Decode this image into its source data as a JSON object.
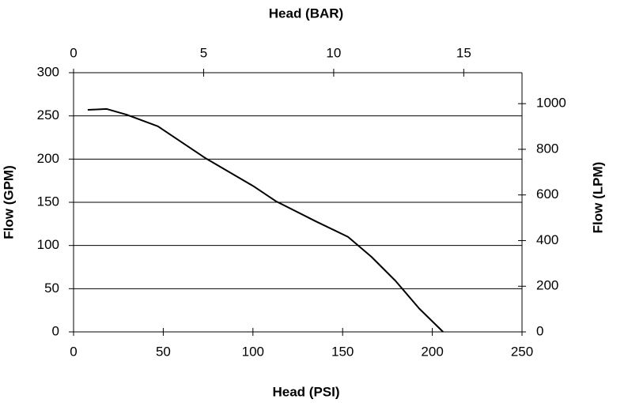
{
  "chart_data": {
    "type": "line",
    "x_label": "Head (PSI)",
    "x2_label": "Head (BAR)",
    "y_label": "Flow (GPM)",
    "y2_label": "Flow (LPM)",
    "x": [
      7.9,
      18.5,
      29.5,
      47,
      73.6,
      100,
      113,
      135,
      153,
      166,
      179.5,
      192.7,
      206
    ],
    "series": [
      {
        "color": "#000000",
        "values": [
          257,
          258,
          251.5,
          238,
          201,
          169,
          151,
          128,
          110,
          87,
          59,
          27,
          0
        ]
      }
    ],
    "xlim": [
      0,
      250
    ],
    "xticks": [
      0,
      50,
      100,
      150,
      200,
      250
    ],
    "ylim": [
      0,
      300
    ],
    "yticks": [
      0,
      50,
      100,
      150,
      200,
      250,
      300
    ],
    "x2lim": [
      0,
      17.24
    ],
    "x2ticks": [
      0,
      5,
      10,
      15
    ],
    "y2lim": [
      0,
      1135.6
    ],
    "y2ticks": [
      0,
      200,
      400,
      600,
      800,
      1000
    ],
    "grid": true
  }
}
